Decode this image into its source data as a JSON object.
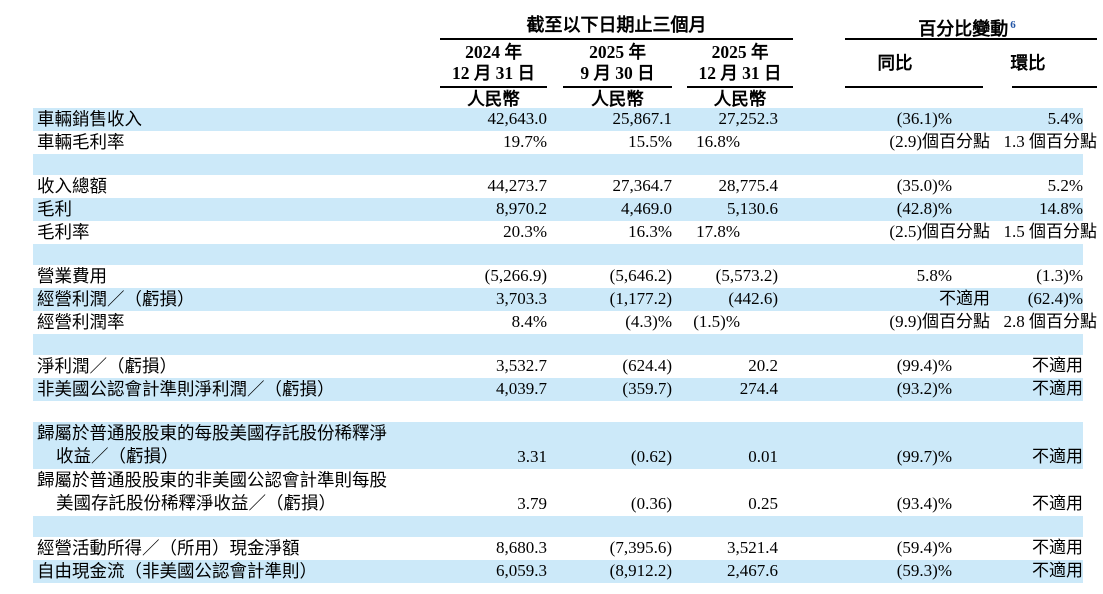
{
  "header": {
    "period_spanner": "截至以下日期止三個月",
    "change_spanner": "百分比變動",
    "change_footnote": "6",
    "period_columns": [
      {
        "line1": "2024 年",
        "line2": "12 月 31 日",
        "currency": "人民幣"
      },
      {
        "line1": "2025 年",
        "line2": "9 月 30 日",
        "currency": "人民幣"
      },
      {
        "line1": "2025 年",
        "line2": "12 月 31 日",
        "currency": "人民幣"
      }
    ],
    "change_columns": [
      {
        "label": "同比"
      },
      {
        "label": "環比"
      }
    ]
  },
  "colors": {
    "row_highlight_blue": "#cce9f9",
    "footnote_blue": "#2356a6"
  },
  "rows": [
    {
      "label": "車輛銷售收入",
      "values": [
        "42,643.0",
        "25,867.1",
        "27,252.3",
        "(36.1)%",
        "5.4%"
      ]
    },
    {
      "label": "車輛毛利率",
      "values": [
        "19.7%",
        "15.5%",
        "16.8%",
        "(2.9)個百分點",
        "1.3 個百分點"
      ]
    },
    {
      "blank": true
    },
    {
      "label": "收入總額",
      "values": [
        "44,273.7",
        "27,364.7",
        "28,775.4",
        "(35.0)%",
        "5.2%"
      ]
    },
    {
      "label": "毛利",
      "values": [
        "8,970.2",
        "4,469.0",
        "5,130.6",
        "(42.8)%",
        "14.8%"
      ]
    },
    {
      "label": "毛利率",
      "values": [
        "20.3%",
        "16.3%",
        "17.8%",
        "(2.5)個百分點",
        "1.5 個百分點"
      ]
    },
    {
      "blank": true
    },
    {
      "label": "營業費用",
      "values": [
        "(5,266.9)",
        "(5,646.2)",
        "(5,573.2)",
        "5.8%",
        "(1.3)%"
      ]
    },
    {
      "label": "經營利潤／（虧損）",
      "values": [
        "3,703.3",
        "(1,177.2)",
        "(442.6)",
        "不適用",
        "(62.4)%"
      ]
    },
    {
      "label": "經營利潤率",
      "values": [
        "8.4%",
        "(4.3)%",
        "(1.5)%",
        "(9.9)個百分點",
        "2.8 個百分點"
      ]
    },
    {
      "blank": true
    },
    {
      "label": "淨利潤／（虧損）",
      "values": [
        "3,532.7",
        "(624.4)",
        "20.2",
        "(99.4)%",
        "不適用"
      ]
    },
    {
      "label": "非美國公認會計準則淨利潤／（虧損）",
      "values": [
        "4,039.7",
        "(359.7)",
        "274.4",
        "(93.2)%",
        "不適用"
      ]
    },
    {
      "blank": true
    },
    {
      "label": "歸屬於普通股股東的每股美國存託股份稀釋淨",
      "label_line2": "收益／（虧損）",
      "values": [
        "3.31",
        "(0.62)",
        "0.01",
        "(99.7)%",
        "不適用"
      ]
    },
    {
      "label": "歸屬於普通股股東的非美國公認會計準則每股",
      "label_line2": "美國存託股份稀釋淨收益／（虧損）",
      "values": [
        "3.79",
        "(0.36)",
        "0.25",
        "(93.4)%",
        "不適用"
      ]
    },
    {
      "blank": true
    },
    {
      "label": "經營活動所得／（所用）現金淨額",
      "values": [
        "8,680.3",
        "(7,395.6)",
        "3,521.4",
        "(59.4)%",
        "不適用"
      ]
    },
    {
      "label": "自由現金流（非美國公認會計準則）",
      "values": [
        "6,059.3",
        "(8,912.2)",
        "2,467.6",
        "(59.3)%",
        "不適用"
      ]
    }
  ]
}
